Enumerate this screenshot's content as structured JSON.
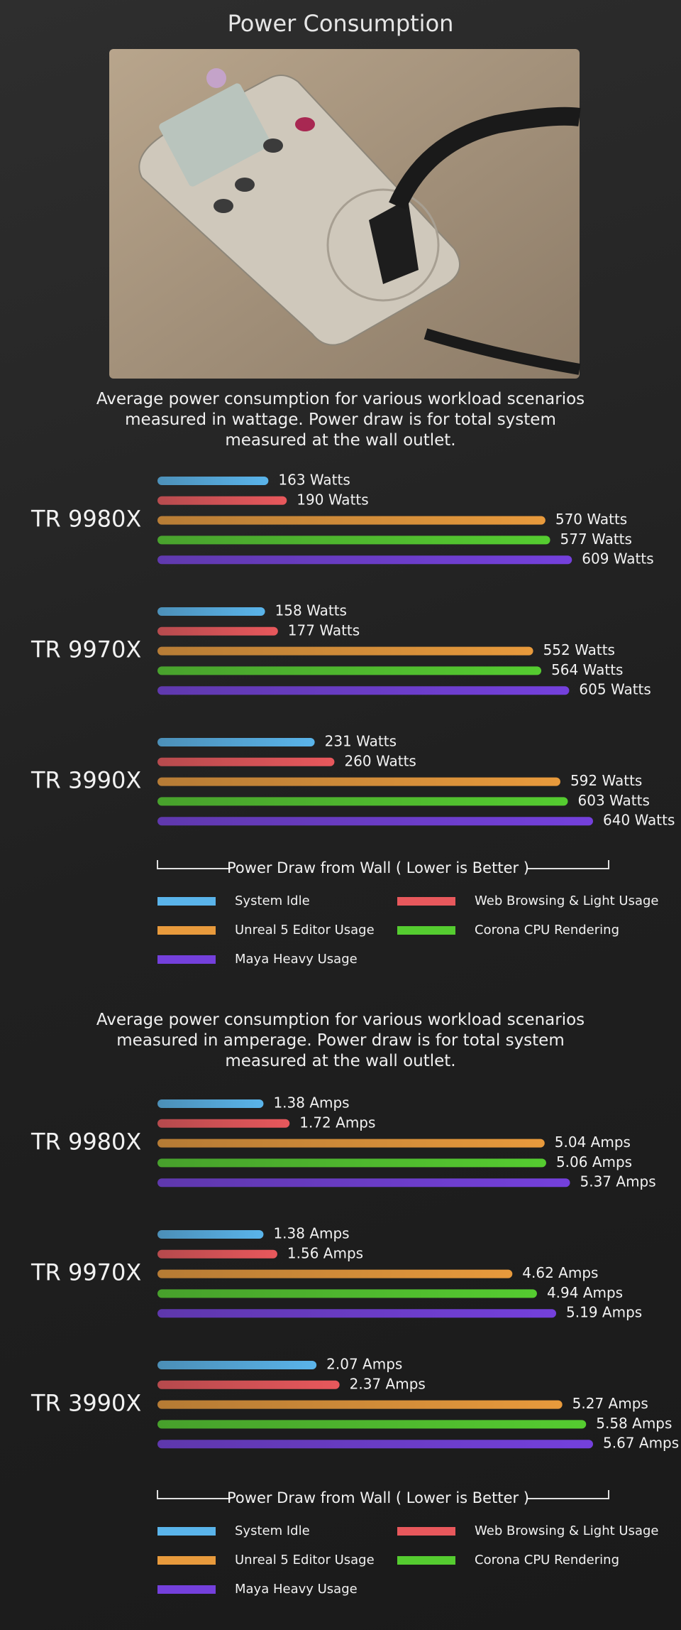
{
  "title": "Power Consumption",
  "chart_data": [
    {
      "type": "bar",
      "orientation": "horizontal",
      "caption": "Average power consumption for various workload scenarios measured in wattage. Power draw is for total system measured at the wall outlet.",
      "categories": [
        "TR 9980X",
        "TR 9970X",
        "TR 3990X"
      ],
      "series": [
        {
          "name": "System Idle",
          "color": "#5ab4ea",
          "values": [
            163,
            158,
            231
          ],
          "value_labels": [
            "163 Watts",
            "158 Watts",
            "231 Watts"
          ]
        },
        {
          "name": "Web Browsing & Light Usage",
          "color": "#e8585c",
          "values": [
            190,
            177,
            260
          ],
          "value_labels": [
            "190 Watts",
            "177 Watts",
            "260 Watts"
          ]
        },
        {
          "name": "Unreal 5 Editor Usage",
          "color": "#e89a3c",
          "values": [
            570,
            552,
            592
          ],
          "value_labels": [
            "570 Watts",
            "552 Watts",
            "592 Watts"
          ]
        },
        {
          "name": "Corona CPU Rendering",
          "color": "#55cc30",
          "values": [
            577,
            564,
            603
          ],
          "value_labels": [
            "577 Watts",
            "564 Watts",
            "603 Watts"
          ]
        },
        {
          "name": "Maya Heavy Usage",
          "color": "#7440dc",
          "values": [
            609,
            605,
            640
          ],
          "value_labels": [
            "609 Watts",
            "605 Watts",
            "640 Watts"
          ]
        }
      ],
      "axis_label": "Power Draw from Wall ( Lower is Better )"
    },
    {
      "type": "bar",
      "orientation": "horizontal",
      "caption": "Average power consumption for various workload scenarios measured in amperage. Power draw is for total system measured at the wall outlet.",
      "categories": [
        "TR 9980X",
        "TR 9970X",
        "TR 3990X"
      ],
      "series": [
        {
          "name": "System Idle",
          "color": "#5ab4ea",
          "values": [
            1.38,
            1.38,
            2.07
          ],
          "value_labels": [
            "1.38 Amps",
            "1.38 Amps",
            "2.07 Amps"
          ]
        },
        {
          "name": "Web Browsing & Light Usage",
          "color": "#e8585c",
          "values": [
            1.72,
            1.56,
            2.37
          ],
          "value_labels": [
            "1.72 Amps",
            "1.56 Amps",
            "2.37 Amps"
          ]
        },
        {
          "name": "Unreal 5 Editor Usage",
          "color": "#e89a3c",
          "values": [
            5.04,
            4.62,
            5.27
          ],
          "value_labels": [
            "5.04 Amps",
            "4.62 Amps",
            "5.27 Amps"
          ]
        },
        {
          "name": "Corona CPU Rendering",
          "color": "#55cc30",
          "values": [
            5.06,
            4.94,
            5.58
          ],
          "value_labels": [
            "5.06 Amps",
            "4.94 Amps",
            "5.58 Amps"
          ]
        },
        {
          "name": "Maya Heavy Usage",
          "color": "#7440dc",
          "values": [
            5.37,
            5.19,
            5.67
          ],
          "value_labels": [
            "5.37 Amps",
            "5.19 Amps",
            "5.67 Amps"
          ]
        }
      ],
      "axis_label": "Power Draw from Wall ( Lower is Better )"
    }
  ]
}
